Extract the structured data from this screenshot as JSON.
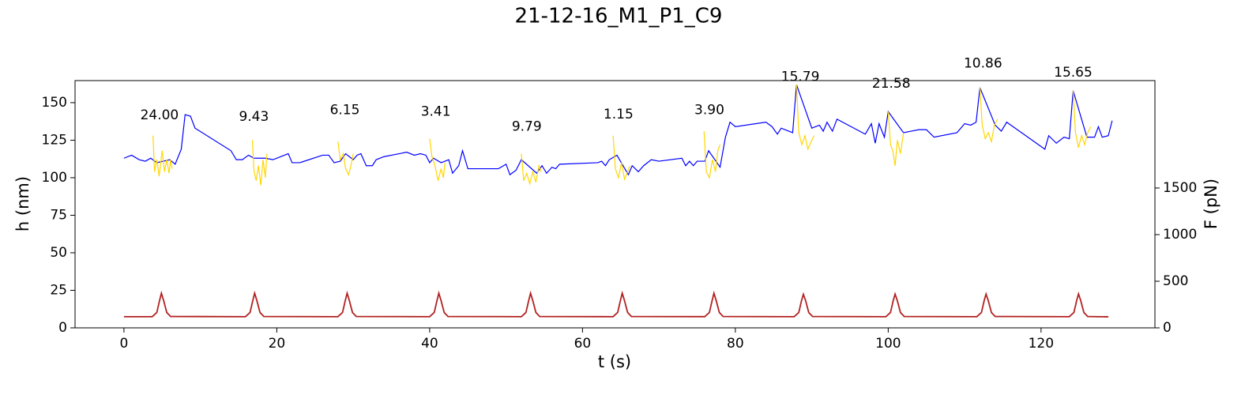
{
  "chart_data": {
    "type": "line",
    "title": "21-12-16_M1_P1_C9",
    "xlabel": "t (s)",
    "ylabel": "h (nm)",
    "y2label": "F (pN)",
    "ylabel_color": "#0000ff",
    "y2label_color": "#b22222",
    "xlim": [
      -6.4,
      134.9
    ],
    "ylim": [
      0,
      164.7
    ],
    "y2lim": [
      0,
      2652
    ],
    "xticks": [
      0,
      20,
      40,
      60,
      80,
      100,
      120
    ],
    "yticks": [
      0,
      25,
      50,
      75,
      100,
      125,
      150
    ],
    "y2ticks": [
      0,
      500,
      1000,
      1500
    ],
    "grid": false,
    "series": [
      {
        "name": "h",
        "color": "#0000ff",
        "axis": "y",
        "x": [
          0,
          1,
          2,
          2.8,
          3.5,
          4.3,
          6,
          6.7,
          7.5,
          8,
          8.7,
          9.3,
          14,
          14.7,
          15.5,
          16.3,
          17,
          18.5,
          19.5,
          21,
          21.5,
          22,
          23,
          26,
          26.8,
          27.5,
          28.3,
          29,
          30,
          30.5,
          31,
          31.7,
          32.5,
          33,
          34,
          36,
          37,
          38,
          38.8,
          39.5,
          40,
          40.5,
          41.5,
          42.5,
          43,
          43.8,
          44.3,
          45,
          49,
          50,
          50.5,
          51.3,
          52,
          54,
          54.7,
          55.3,
          56,
          56.5,
          57,
          62,
          62.5,
          63,
          63.5,
          64.5,
          66,
          66.5,
          67.3,
          68,
          69,
          70,
          73,
          73.5,
          74,
          74.5,
          75,
          76,
          76.5,
          78,
          78.7,
          79.3,
          80,
          84,
          84.8,
          85.5,
          86,
          87,
          87.5,
          88,
          90,
          91,
          91.5,
          92,
          92.7,
          93.3,
          97,
          97.8,
          98.3,
          98.8,
          99.5,
          100,
          102,
          103,
          104,
          105,
          106,
          109,
          110,
          110.8,
          111.5,
          112,
          114,
          114.8,
          115.5,
          120.5,
          121,
          122,
          123,
          123.7,
          124.2,
          126,
          127,
          127.5,
          128,
          128.8,
          129.3
        ],
        "values": [
          113,
          115,
          112,
          111,
          113,
          110,
          112,
          109,
          119,
          142,
          141,
          133,
          118,
          112,
          112,
          115,
          113,
          113,
          112,
          115,
          116,
          110,
          110,
          115,
          115,
          110,
          111,
          116,
          112,
          115,
          116,
          108,
          108,
          112,
          114,
          116,
          117,
          115,
          116,
          115,
          110,
          113,
          110,
          112,
          103,
          108,
          118,
          106,
          106,
          109,
          102,
          105,
          112,
          103,
          108,
          103,
          107,
          106,
          109,
          110,
          111,
          108,
          112,
          115,
          102,
          108,
          104,
          108,
          112,
          111,
          113,
          108,
          111,
          108,
          111,
          111,
          118,
          107,
          127,
          137,
          134,
          137,
          134,
          129,
          133,
          131,
          130,
          162,
          133,
          135,
          131,
          137,
          131,
          139,
          129,
          136,
          123,
          136,
          127,
          144,
          130,
          131,
          132,
          132,
          127,
          130,
          136,
          135,
          137,
          160,
          135,
          131,
          137,
          119,
          128,
          123,
          127,
          126,
          158,
          127,
          127,
          134,
          127,
          128,
          138
        ]
      },
      {
        "name": "h cycles",
        "color": "#ffd700",
        "axis": "y",
        "x": [
          3.8,
          4,
          4.3,
          4.6,
          5,
          5.3,
          5.6,
          5.9,
          6.1,
          6.3,
          null,
          16.8,
          17,
          17.3,
          17.6,
          17.9,
          18.2,
          18.5,
          18.7,
          null,
          28,
          28.3,
          28.7,
          29,
          29.4,
          29.7,
          30,
          null,
          40,
          40.3,
          40.7,
          41.1,
          41.5,
          41.8,
          42,
          null,
          52,
          52.3,
          52.7,
          53.1,
          53.5,
          53.9,
          54.3,
          54.6,
          null,
          64,
          64.3,
          64.7,
          65.1,
          65.5,
          65.9,
          66.2,
          null,
          75.9,
          76.2,
          76.6,
          77,
          77.4,
          77.7,
          78,
          null,
          88,
          88.3,
          88.7,
          89.1,
          89.5,
          89.9,
          90.3,
          null,
          100,
          100.3,
          100.6,
          100.9,
          101.2,
          101.6,
          102,
          null,
          112,
          112.3,
          112.7,
          113.1,
          113.5,
          113.9,
          114.3,
          null,
          124.2,
          124.5,
          124.9,
          125.3,
          125.7,
          126.1,
          126.5
        ],
        "values": [
          128,
          104,
          112,
          101,
          118,
          104,
          112,
          103,
          112,
          106,
          null,
          125,
          105,
          98,
          108,
          95,
          112,
          100,
          116,
          null,
          124,
          112,
          116,
          106,
          102,
          108,
          116,
          null,
          126,
          114,
          108,
          98,
          106,
          100,
          110,
          null,
          116,
          98,
          103,
          96,
          104,
          97,
          108,
          104,
          null,
          128,
          106,
          100,
          110,
          99,
          104,
          108,
          null,
          131,
          104,
          100,
          112,
          104,
          118,
          122,
          null,
          162,
          130,
          122,
          128,
          119,
          124,
          128,
          null,
          144,
          122,
          118,
          108,
          125,
          116,
          130,
          null,
          160,
          135,
          126,
          130,
          124,
          135,
          139,
          null,
          158,
          130,
          120,
          128,
          122,
          130,
          134
        ]
      },
      {
        "name": "F",
        "color": "#b22222",
        "axis": "y2",
        "x": [
          0,
          3.7,
          4.3,
          4.65,
          4.9,
          5.2,
          5.6,
          6.1,
          15.9,
          16.5,
          16.85,
          17.1,
          17.4,
          17.8,
          18.3,
          28,
          28.6,
          28.95,
          29.2,
          29.5,
          29.9,
          30.4,
          40,
          40.6,
          40.95,
          41.2,
          41.5,
          41.9,
          42.4,
          52,
          52.6,
          52.95,
          53.2,
          53.5,
          53.9,
          54.4,
          64,
          64.6,
          64.95,
          65.2,
          65.5,
          65.9,
          66.4,
          76,
          76.6,
          76.95,
          77.2,
          77.5,
          77.9,
          78.4,
          87.7,
          88.3,
          88.65,
          88.9,
          89.2,
          89.6,
          90.1,
          99.7,
          100.3,
          100.65,
          100.9,
          101.2,
          101.6,
          102.1,
          111.6,
          112.2,
          112.55,
          112.8,
          113.1,
          113.5,
          114,
          123.7,
          124.3,
          124.65,
          124.9,
          125.2,
          125.6,
          126.1,
          128.8
        ],
        "values": [
          120,
          120,
          165,
          290,
          372,
          290,
          165,
          122,
          120,
          165,
          290,
          372,
          290,
          165,
          122,
          120,
          165,
          290,
          372,
          290,
          165,
          122,
          120,
          165,
          290,
          372,
          290,
          165,
          122,
          120,
          165,
          290,
          372,
          290,
          165,
          122,
          120,
          165,
          290,
          372,
          290,
          165,
          122,
          120,
          165,
          290,
          372,
          290,
          165,
          122,
          120,
          165,
          290,
          360,
          290,
          165,
          122,
          120,
          165,
          290,
          362,
          290,
          165,
          122,
          120,
          165,
          290,
          362,
          290,
          165,
          122,
          120,
          165,
          290,
          364,
          290,
          165,
          122,
          118
        ]
      }
    ],
    "annotations": [
      {
        "text": "24.00",
        "x": 4.65,
        "y": 141.6
      },
      {
        "text": "9.43",
        "x": 17,
        "y": 140.5
      },
      {
        "text": "6.15",
        "x": 28.9,
        "y": 145
      },
      {
        "text": "3.41",
        "x": 40.8,
        "y": 144
      },
      {
        "text": "9.79",
        "x": 52.7,
        "y": 134
      },
      {
        "text": "1.15",
        "x": 64.7,
        "y": 142
      },
      {
        "text": "3.90",
        "x": 76.6,
        "y": 145
      },
      {
        "text": "15.79",
        "x": 88.5,
        "y": 167
      },
      {
        "text": "21.58",
        "x": 100.4,
        "y": 162.6
      },
      {
        "text": "10.86",
        "x": 112.4,
        "y": 176
      },
      {
        "text": "15.65",
        "x": 124.2,
        "y": 170
      }
    ]
  }
}
